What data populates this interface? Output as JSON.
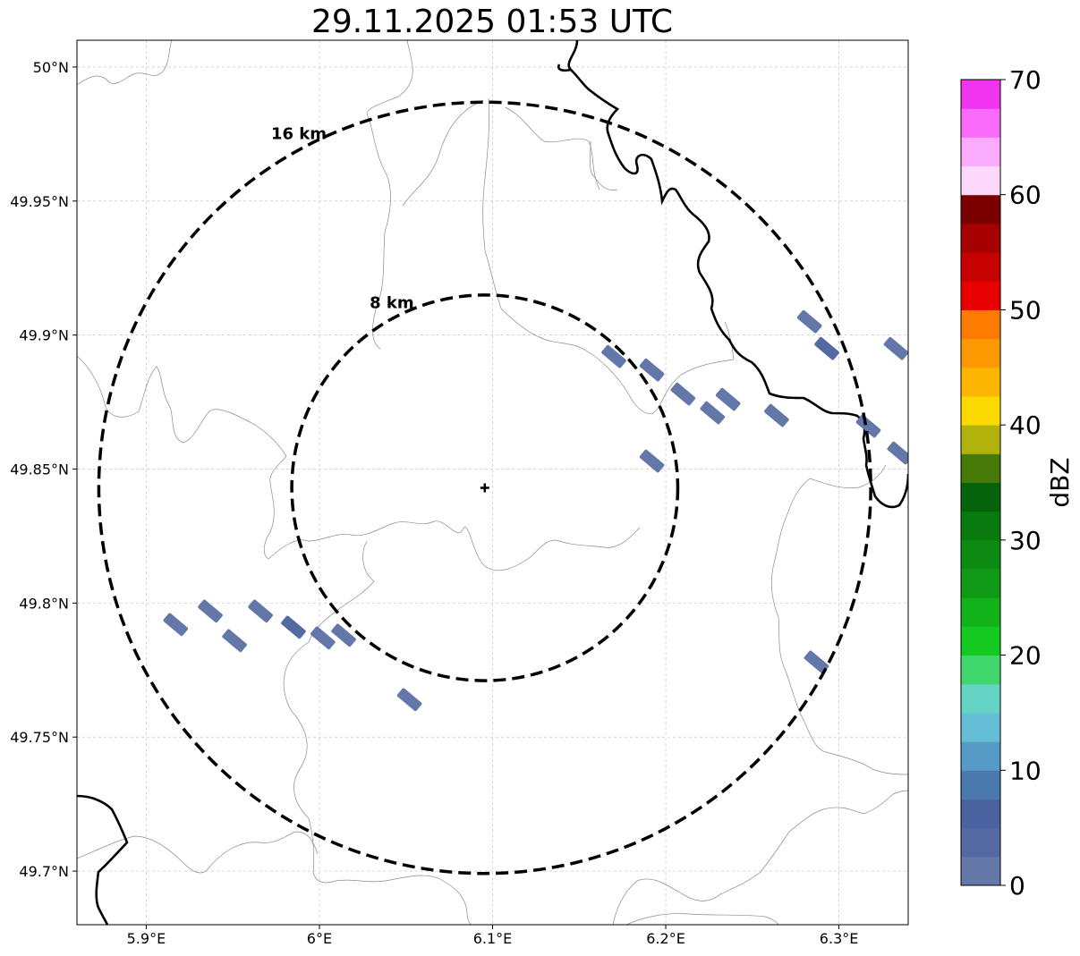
{
  "title": "29.11.2025 01:53 UTC",
  "map": {
    "lon_range": [
      5.86,
      6.34
    ],
    "lat_range": [
      49.68,
      50.01
    ],
    "lon_ticks": [
      {
        "value": 5.9,
        "label": "5.9°E"
      },
      {
        "value": 6.0,
        "label": "6°E"
      },
      {
        "value": 6.1,
        "label": "6.1°E"
      },
      {
        "value": 6.2,
        "label": "6.2°E"
      },
      {
        "value": 6.3,
        "label": "6.3°E"
      }
    ],
    "lat_ticks": [
      {
        "value": 50.0,
        "label": "50°N"
      },
      {
        "value": 49.95,
        "label": "49.95°N"
      },
      {
        "value": 49.9,
        "label": "49.9°N"
      },
      {
        "value": 49.85,
        "label": "49.85°N"
      },
      {
        "value": 49.8,
        "label": "49.8°N"
      },
      {
        "value": 49.75,
        "label": "49.75°N"
      },
      {
        "value": 49.7,
        "label": "49.7°N"
      }
    ],
    "gridlines": true,
    "radar_site": {
      "lon": 6.0955,
      "lat": 49.843
    },
    "range_rings": [
      {
        "label": "8 km",
        "radius_km": 8
      },
      {
        "label": "16 km",
        "radius_km": 16
      }
    ],
    "reflectivity_cells": [
      {
        "lon": 5.917,
        "lat": 49.792,
        "dbz": 2
      },
      {
        "lon": 5.937,
        "lat": 49.797,
        "dbz": 2
      },
      {
        "lon": 5.951,
        "lat": 49.786,
        "dbz": 2
      },
      {
        "lon": 5.966,
        "lat": 49.797,
        "dbz": 2
      },
      {
        "lon": 5.985,
        "lat": 49.791,
        "dbz": 3
      },
      {
        "lon": 6.002,
        "lat": 49.787,
        "dbz": 2
      },
      {
        "lon": 6.014,
        "lat": 49.788,
        "dbz": 2
      },
      {
        "lon": 6.052,
        "lat": 49.764,
        "dbz": 2
      },
      {
        "lon": 6.17,
        "lat": 49.892,
        "dbz": 2
      },
      {
        "lon": 6.192,
        "lat": 49.887,
        "dbz": 2
      },
      {
        "lon": 6.21,
        "lat": 49.878,
        "dbz": 2
      },
      {
        "lon": 6.227,
        "lat": 49.871,
        "dbz": 2
      },
      {
        "lon": 6.236,
        "lat": 49.876,
        "dbz": 2
      },
      {
        "lon": 6.264,
        "lat": 49.87,
        "dbz": 2
      },
      {
        "lon": 6.192,
        "lat": 49.853,
        "dbz": 2
      },
      {
        "lon": 6.283,
        "lat": 49.905,
        "dbz": 2
      },
      {
        "lon": 6.293,
        "lat": 49.895,
        "dbz": 3
      },
      {
        "lon": 6.317,
        "lat": 49.866,
        "dbz": 2
      },
      {
        "lon": 6.333,
        "lat": 49.895,
        "dbz": 2
      },
      {
        "lon": 6.335,
        "lat": 49.856,
        "dbz": 2
      },
      {
        "lon": 6.287,
        "lat": 49.778,
        "dbz": 2
      }
    ]
  },
  "colorbar": {
    "label": "dBZ",
    "range": [
      0,
      70
    ],
    "ticks": [
      {
        "value": 0,
        "label": "0"
      },
      {
        "value": 10,
        "label": "10"
      },
      {
        "value": 20,
        "label": "20"
      },
      {
        "value": 30,
        "label": "30"
      },
      {
        "value": 40,
        "label": "40"
      },
      {
        "value": 50,
        "label": "50"
      },
      {
        "value": 60,
        "label": "60"
      },
      {
        "value": 70,
        "label": "70"
      }
    ],
    "colors": [
      "#6377a8",
      "#5468a2",
      "#4a62a0",
      "#4a79b0",
      "#569bc6",
      "#64bed8",
      "#63d4c3",
      "#3fd76e",
      "#14c91f",
      "#12b31a",
      "#109a15",
      "#0c8a12",
      "#097a0e",
      "#05640b",
      "#487a0a",
      "#b1b20b",
      "#fcd900",
      "#fcb500",
      "#fc9800",
      "#fc7b00",
      "#e80000",
      "#c70000",
      "#a60000",
      "#7a0000",
      "#fdd9fd",
      "#fbabfb",
      "#fb6bfb",
      "#ef33ef"
    ]
  }
}
